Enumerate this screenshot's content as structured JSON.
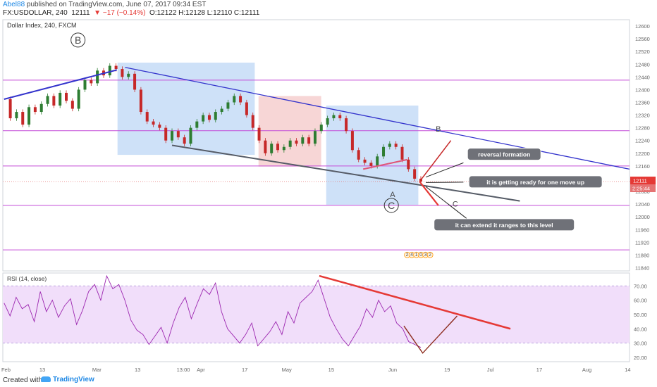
{
  "header": {
    "publisher": "Abel88",
    "published_text": "published on TradingView.com, June 07, 2017 09:34 EST",
    "symbol": "FX:USDOLLAR, 240",
    "price": "12111",
    "change": "▼ −17 (−0.14%)",
    "ohlc": "O:12122 H:12128 L:12110 C:12111"
  },
  "footer": {
    "created": "Created with",
    "brand": "TradingView"
  },
  "colors": {
    "bluebox": "#c5dcf7",
    "redbox": "#f6d1d1",
    "purple": "#c44dd8",
    "trend_blue": "#3333cc",
    "grey": "#555b66",
    "red": "#e53935",
    "rsi_bg": "#f1defa",
    "rsi_line": "#9c27b0"
  },
  "chart_data": [
    {
      "type": "candlestick",
      "title": "Dollar Index, 240, FXCM",
      "x_ticks": [
        "Feb",
        "13",
        "Mar",
        "13",
        "13:00",
        "Apr",
        "17",
        "May",
        "15",
        "Jun",
        "19",
        "Jul",
        "17",
        "Aug",
        "14"
      ],
      "y_ticks": [
        12600,
        12560,
        12520,
        12480,
        12440,
        12400,
        12360,
        12320,
        12280,
        12240,
        12200,
        12160,
        12120,
        12080,
        12040,
        12000,
        11960,
        11920,
        11880,
        11840
      ],
      "ylim": [
        11830,
        12620
      ],
      "last_price_label": "12111",
      "countdown_label": "2:25:44",
      "horizontal_levels": [
        12430,
        12271,
        12160,
        12036,
        11896
      ],
      "price_path": [
        12370,
        12310,
        12330,
        12290,
        12345,
        12330,
        12355,
        12380,
        12350,
        12390,
        12365,
        12340,
        12400,
        12430,
        12420,
        12460,
        12445,
        12475,
        12465,
        12440,
        12450,
        12400,
        12330,
        12300,
        12290,
        12280,
        12240,
        12270,
        12250,
        12230,
        12280,
        12300,
        12320,
        12305,
        12330,
        12340,
        12360,
        12380,
        12360,
        12320,
        12280,
        12240,
        12200,
        12230,
        12210,
        12220,
        12240,
        12230,
        12250,
        12230,
        12270,
        12290,
        12310,
        12320,
        12310,
        12270,
        12210,
        12180,
        12170,
        12160,
        12190,
        12220,
        12230,
        12220,
        12180,
        12150,
        12120,
        12111
      ],
      "annotations": [
        {
          "text": "B",
          "circled": true,
          "x": 12,
          "y": 12545
        },
        {
          "text": "C",
          "circled": true,
          "x": 62,
          "y": 12025
        },
        {
          "text": "A",
          "circled": false,
          "x": 62.2,
          "y": 12062
        },
        {
          "text": "B",
          "circled": false,
          "x": 69.5,
          "y": 12268
        },
        {
          "text": "C",
          "circled": false,
          "x": 72.2,
          "y": 12032
        }
      ],
      "callouts": [
        {
          "text": "reversal formation",
          "x": 80,
          "y": 12196
        },
        {
          "text": "it is getting ready for one move up",
          "x": 85,
          "y": 12109
        },
        {
          "text": "it can extend it ranges to this level",
          "x": 80,
          "y": 11974
        }
      ],
      "zoom_labels": [
        "2",
        "4",
        "1",
        "0",
        "3",
        "2"
      ]
    },
    {
      "type": "line",
      "title": "RSI (14, close)",
      "y_ticks": [
        70,
        60,
        50,
        40,
        30,
        20
      ],
      "ylim": [
        17,
        79
      ],
      "band": [
        30,
        70
      ],
      "rsi_path": [
        58,
        49,
        62,
        54,
        57,
        45,
        66,
        52,
        60,
        48,
        56,
        61,
        43,
        53,
        66,
        71,
        60,
        77,
        68,
        71,
        60,
        46,
        39,
        36,
        29,
        35,
        41,
        30,
        44,
        55,
        62,
        47,
        58,
        68,
        64,
        72,
        52,
        40,
        35,
        30,
        36,
        44,
        28,
        33,
        38,
        45,
        36,
        52,
        44,
        58,
        62,
        66,
        74,
        61,
        48,
        40,
        33,
        28,
        35,
        42,
        54,
        48,
        60,
        52,
        56,
        44,
        40,
        31,
        29,
        27
      ]
    }
  ]
}
